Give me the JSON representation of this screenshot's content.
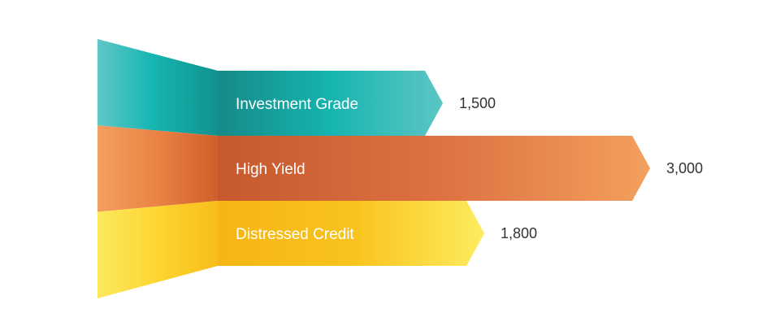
{
  "chart_data": {
    "type": "bar",
    "orientation": "horizontal",
    "style": "arrow-ribbon",
    "categories": [
      "Investment Grade",
      "High Yield",
      "Distressed Credit"
    ],
    "values": [
      1500,
      3000,
      1800
    ],
    "value_labels": [
      "1,500",
      "3,000",
      "1,800"
    ],
    "colors": [
      "#19b3b3",
      "#d9643a",
      "#fbbf1a"
    ],
    "title": "",
    "xlabel": "",
    "ylabel": "",
    "grid": false,
    "legend": "none"
  }
}
